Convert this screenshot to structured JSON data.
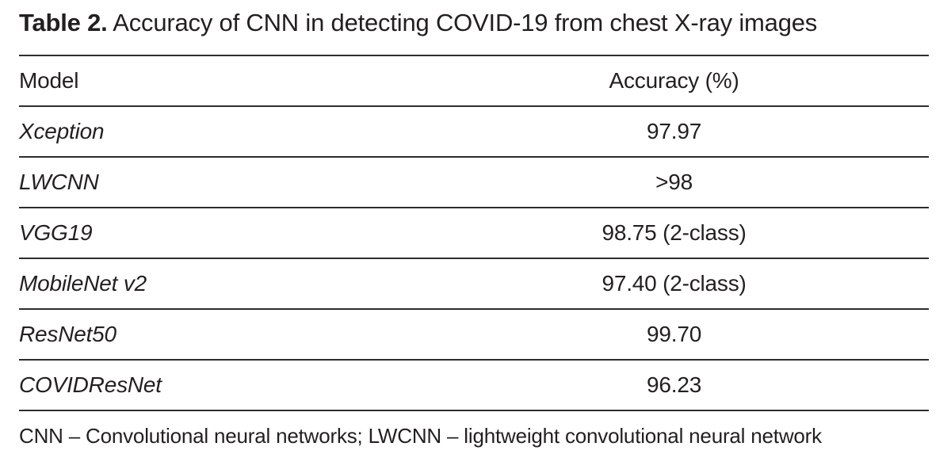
{
  "title": {
    "label": "Table 2.",
    "text": "Accuracy of CNN in detecting COVID-19 from chest X-ray images"
  },
  "table": {
    "columns": [
      "Model",
      "Accuracy (%)"
    ],
    "rows": [
      {
        "model": "Xception",
        "accuracy": "97.97"
      },
      {
        "model": "LWCNN",
        "accuracy": ">98"
      },
      {
        "model": "VGG19",
        "accuracy": "98.75 (2-class)"
      },
      {
        "model": "MobileNet v2",
        "accuracy": "97.40 (2-class)"
      },
      {
        "model": "ResNet50",
        "accuracy": "99.70"
      },
      {
        "model": "COVIDResNet",
        "accuracy": "96.23"
      }
    ]
  },
  "footnote": "CNN – Convolutional neural networks; LWCNN – lightweight convolutional neural network",
  "colors": {
    "text": "#231f20",
    "rule": "#2d2d2d",
    "background": "#ffffff"
  }
}
